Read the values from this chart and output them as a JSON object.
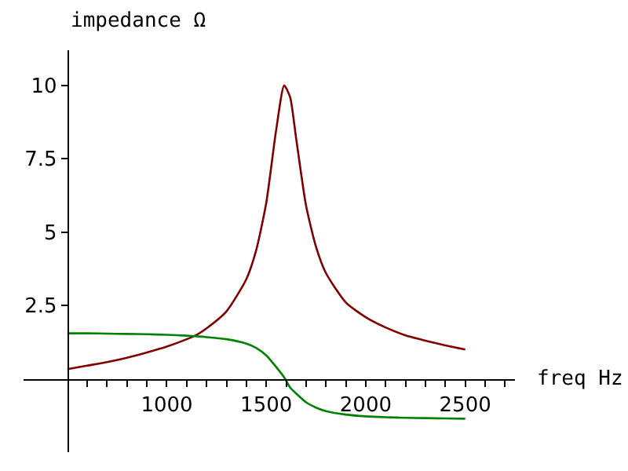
{
  "chart_data": {
    "type": "line",
    "xlabel": "freq Hz",
    "ylabel": "impedance Ω",
    "x": [
      500,
      600,
      700,
      800,
      900,
      1000,
      1100,
      1150,
      1200,
      1300,
      1400,
      1450,
      1500,
      1550,
      1590,
      1620,
      1650,
      1700,
      1750,
      1800,
      1900,
      2000,
      2100,
      2200,
      2300,
      2400,
      2500
    ],
    "series": [
      {
        "color": "#800000",
        "values": [
          0.33,
          0.45,
          0.57,
          0.72,
          0.9,
          1.1,
          1.35,
          1.5,
          1.72,
          2.3,
          3.4,
          4.4,
          6.0,
          8.5,
          10.0,
          9.6,
          8.2,
          5.9,
          4.5,
          3.6,
          2.6,
          2.1,
          1.75,
          1.48,
          1.3,
          1.14,
          1.0
        ]
      },
      {
        "color": "#008000",
        "values": [
          1.55,
          1.55,
          1.54,
          1.53,
          1.52,
          1.5,
          1.47,
          1.45,
          1.42,
          1.35,
          1.2,
          1.05,
          0.8,
          0.4,
          0.05,
          -0.3,
          -0.5,
          -0.8,
          -0.98,
          -1.1,
          -1.22,
          -1.28,
          -1.31,
          -1.33,
          -1.34,
          -1.35,
          -1.36
        ]
      }
    ],
    "xlim": [
      280,
      2750
    ],
    "ylim": [
      -2.5,
      11.2
    ],
    "xticks": [
      {
        "value": 600,
        "label": null
      },
      {
        "value": 700,
        "label": null
      },
      {
        "value": 800,
        "label": null
      },
      {
        "value": 900,
        "label": null
      },
      1000,
      {
        "value": 1100,
        "label": null
      },
      {
        "value": 1200,
        "label": null
      },
      {
        "value": 1300,
        "label": null
      },
      {
        "value": 1400,
        "label": null
      },
      1500,
      {
        "value": 1600,
        "label": null
      },
      {
        "value": 1700,
        "label": null
      },
      {
        "value": 1800,
        "label": null
      },
      {
        "value": 1900,
        "label": null
      },
      2000,
      {
        "value": 2100,
        "label": null
      },
      {
        "value": 2200,
        "label": null
      },
      {
        "value": 2300,
        "label": null
      },
      {
        "value": 2400,
        "label": null
      },
      2500,
      {
        "value": 2600,
        "label": null
      },
      {
        "value": 2700,
        "label": null
      }
    ],
    "yticks": [
      2.5,
      5,
      7.5,
      10
    ],
    "marker": "none",
    "line_style": "solid"
  }
}
